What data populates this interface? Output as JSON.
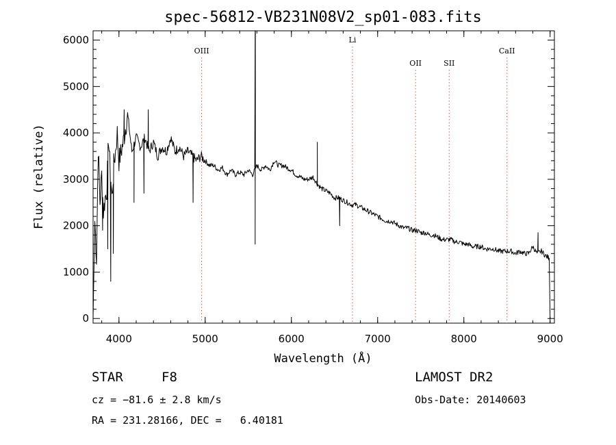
{
  "chart_data": {
    "type": "line",
    "title": "spec-56812-VB231N08V2_sp01-083.fits",
    "xlabel": "Wavelength (Å)",
    "ylabel": "Flux (relative)",
    "xlim": [
      3700,
      9050
    ],
    "ylim": [
      -100,
      6200
    ],
    "x_ticks": [
      4000,
      5000,
      6000,
      7000,
      8000,
      9000
    ],
    "y_ticks": [
      0,
      1000,
      2000,
      3000,
      4000,
      5000,
      6000
    ],
    "grid": false,
    "legend": "none",
    "line_color": "#000000",
    "marker_color": "#e07070",
    "line_markers": [
      {
        "label": "OIII",
        "x": 4959
      },
      {
        "label": "Li",
        "x": 6708
      },
      {
        "label": "OII",
        "x": 7440
      },
      {
        "label": "SII",
        "x": 7830
      },
      {
        "label": "CaII",
        "x": 8500
      }
    ],
    "series": [
      {
        "x": [
          3700,
          3720,
          3740,
          3760,
          3780,
          3800,
          3820,
          3840,
          3860,
          3880,
          3900,
          3920,
          3940,
          3960,
          3980,
          4000,
          4050,
          4100,
          4150,
          4200,
          4250,
          4300,
          4350,
          4400,
          4450,
          4500,
          4550,
          4600,
          4650,
          4700,
          4750,
          4800,
          4850,
          4900,
          4950,
          5000,
          5050,
          5100,
          5150,
          5200,
          5250,
          5300,
          5350,
          5400,
          5450,
          5500,
          5550,
          5600,
          5650,
          5700,
          5750,
          5800,
          5850,
          5900,
          5950,
          6000,
          6050,
          6100,
          6150,
          6200,
          6250,
          6300,
          6350,
          6400,
          6450,
          6500,
          6550,
          6600,
          6650,
          6700,
          6750,
          6800,
          6850,
          6900,
          6950,
          7000,
          7050,
          7100,
          7150,
          7200,
          7250,
          7300,
          7350,
          7400,
          7450,
          7500,
          7550,
          7600,
          7650,
          7700,
          7750,
          7800,
          7850,
          7900,
          7950,
          8000,
          8050,
          8100,
          8150,
          8200,
          8250,
          8300,
          8350,
          8400,
          8450,
          8500,
          8550,
          8600,
          8650,
          8700,
          8750,
          8800,
          8850,
          8900,
          8950,
          8990,
          9000
        ],
        "y": [
          0,
          2100,
          1300,
          3700,
          2500,
          3100,
          2300,
          2600,
          2800,
          3900,
          3100,
          2600,
          3300,
          3600,
          4000,
          3400,
          3800,
          4400,
          3600,
          3900,
          3700,
          3900,
          3600,
          3800,
          3500,
          3700,
          3600,
          3900,
          3600,
          3700,
          3500,
          3600,
          3500,
          3400,
          3500,
          3400,
          3300,
          3300,
          3200,
          3250,
          3100,
          3200,
          3100,
          3150,
          3100,
          3200,
          3100,
          3300,
          3200,
          3300,
          3200,
          3400,
          3300,
          3300,
          3250,
          3200,
          3100,
          3050,
          3000,
          3000,
          3050,
          2900,
          2800,
          2750,
          2700,
          2600,
          2600,
          2550,
          2500,
          2450,
          2450,
          2400,
          2350,
          2300,
          2250,
          2200,
          2150,
          2100,
          2100,
          2050,
          2000,
          1950,
          1950,
          1900,
          1900,
          1850,
          1850,
          1800,
          1800,
          1750,
          1700,
          1700,
          1700,
          1650,
          1650,
          1600,
          1600,
          1550,
          1550,
          1550,
          1500,
          1500,
          1500,
          1450,
          1450,
          1450,
          1450,
          1400,
          1450,
          1400,
          1400,
          1550,
          1400,
          1450,
          1350,
          1300,
          0
        ]
      }
    ],
    "spikes": [
      {
        "x": 3810,
        "y": 1900
      },
      {
        "x": 3870,
        "y": 1500
      },
      {
        "x": 3905,
        "y": 800
      },
      {
        "x": 3935,
        "y": 1400
      },
      {
        "x": 4060,
        "y": 4500
      },
      {
        "x": 4175,
        "y": 2500
      },
      {
        "x": 4290,
        "y": 2700
      },
      {
        "x": 4340,
        "y": 4500
      },
      {
        "x": 4860,
        "y": 2500
      },
      {
        "x": 5580,
        "y": 6200
      },
      {
        "x": 5580,
        "y": 1600
      },
      {
        "x": 6300,
        "y": 3800
      },
      {
        "x": 6560,
        "y": 2000
      },
      {
        "x": 8860,
        "y": 1850
      }
    ]
  },
  "info": {
    "object_type": "STAR",
    "subclass": "F8",
    "velocity": "cz = −81.6 ± 2.8 km/s",
    "coords": "RA = 231.28166, DEC =   6.40181",
    "survey": "LAMOST DR2",
    "obs_date": "Obs-Date: 20140603"
  }
}
